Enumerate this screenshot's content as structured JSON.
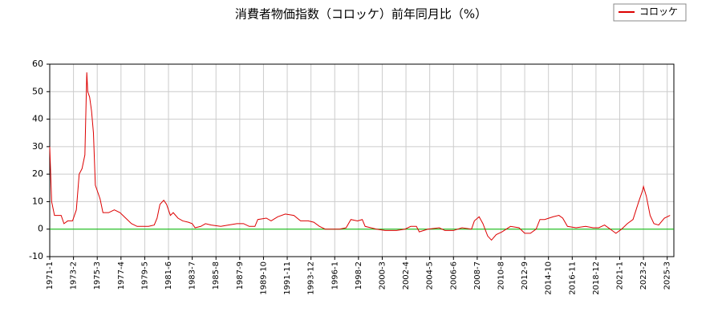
{
  "chart_data": {
    "type": "line",
    "title": "消費者物価指数（コロッケ）前年同月比（%）",
    "x": [
      "1971-1",
      "1971-3",
      "1971-6",
      "1972-1",
      "1972-4",
      "1972-8",
      "1973-1",
      "1973-5",
      "1973-8",
      "1973-11",
      "1974-2",
      "1974-4",
      "1974-5",
      "1974-7",
      "1974-9",
      "1974-11",
      "1975-1",
      "1975-4",
      "1975-6",
      "1975-9",
      "1976-3",
      "1976-9",
      "1977-3",
      "1977-9",
      "1978-3",
      "1978-9",
      "1979-3",
      "1979-9",
      "1980-3",
      "1980-6",
      "1980-9",
      "1981-1",
      "1981-4",
      "1981-8",
      "1981-11",
      "1982-4",
      "1982-9",
      "1983-3",
      "1983-7",
      "1983-10",
      "1984-4",
      "1984-9",
      "1985-3",
      "1986-1",
      "1986-9",
      "1987-6",
      "1988-1",
      "1988-7",
      "1989-1",
      "1989-4",
      "1990-1",
      "1990-6",
      "1991-1",
      "1991-9",
      "1992-6",
      "1993-1",
      "1993-9",
      "1994-3",
      "1994-9",
      "1995-3",
      "1996-6",
      "1997-1",
      "1997-6",
      "1998-1",
      "1998-6",
      "1998-9",
      "1999-3",
      "1999-9",
      "2000-6",
      "2001-6",
      "2002-3",
      "2002-9",
      "2003-3",
      "2003-6",
      "2004-3",
      "2005-3",
      "2005-9",
      "2006-6",
      "2007-3",
      "2008-1",
      "2008-4",
      "2008-9",
      "2009-1",
      "2009-6",
      "2009-10",
      "2010-3",
      "2010-9",
      "2011-6",
      "2012-3",
      "2012-9",
      "2013-3",
      "2013-9",
      "2014-1",
      "2014-6",
      "2015-3",
      "2015-9",
      "2016-1",
      "2016-6",
      "2017-3",
      "2018-1",
      "2018-9",
      "2019-3",
      "2019-9",
      "2020-3",
      "2020-9",
      "2021-3",
      "2021-9",
      "2022-3",
      "2022-9",
      "2023-1",
      "2023-2",
      "2023-5",
      "2023-9",
      "2024-1",
      "2024-6",
      "2024-12",
      "2025-6"
    ],
    "series": [
      {
        "name": "コロッケ",
        "color": "#dd0000",
        "values": [
          30,
          10,
          5,
          5,
          2,
          3,
          3,
          7,
          20,
          22,
          27,
          57,
          50,
          48,
          43,
          35,
          16,
          13,
          11,
          6,
          6,
          7,
          6,
          4,
          2,
          1,
          1,
          1,
          1.5,
          4,
          9,
          10.5,
          9,
          5,
          6,
          4,
          3,
          2.5,
          2,
          0.5,
          1,
          2,
          1.5,
          1,
          1.5,
          2,
          2,
          1,
          1,
          3.5,
          4,
          3,
          4.5,
          5.5,
          5,
          3,
          3,
          2.5,
          1,
          0,
          0,
          0.5,
          3.5,
          3,
          3.5,
          1,
          0.5,
          0,
          -0.5,
          -0.5,
          0,
          1,
          1,
          -1,
          0,
          0.5,
          -0.5,
          -0.5,
          0.5,
          0,
          3,
          4.5,
          2,
          -2.5,
          -4,
          -2,
          -1,
          1,
          0.5,
          -1.5,
          -1.5,
          0,
          3.5,
          3.5,
          4.5,
          5,
          4,
          1,
          0.5,
          1,
          0.5,
          0.5,
          1.5,
          0,
          -1.5,
          0,
          2,
          3.5,
          10,
          14,
          15.5,
          12,
          5,
          2,
          1.5,
          4,
          5
        ]
      }
    ],
    "xlim": [
      "1971-1",
      "2025-10"
    ],
    "xticks": [
      "1971-1",
      "1973-2",
      "1975-3",
      "1977-4",
      "1979-5",
      "1981-6",
      "1983-7",
      "1985-8",
      "1987-9",
      "1989-10",
      "1991-11",
      "1993-12",
      "1996-1",
      "1998-2",
      "2000-3",
      "2002-4",
      "2004-5",
      "2006-6",
      "2008-7",
      "2010-8",
      "2012-9",
      "2014-10",
      "2016-11",
      "2018-12",
      "2021-1",
      "2023-2",
      "2025-3"
    ],
    "ylim": [
      -10,
      60
    ],
    "yticks": [
      -10,
      0,
      10,
      20,
      30,
      40,
      50,
      60
    ],
    "grid": true,
    "zero_line_color": "#00bb00",
    "legend": "top-right"
  }
}
